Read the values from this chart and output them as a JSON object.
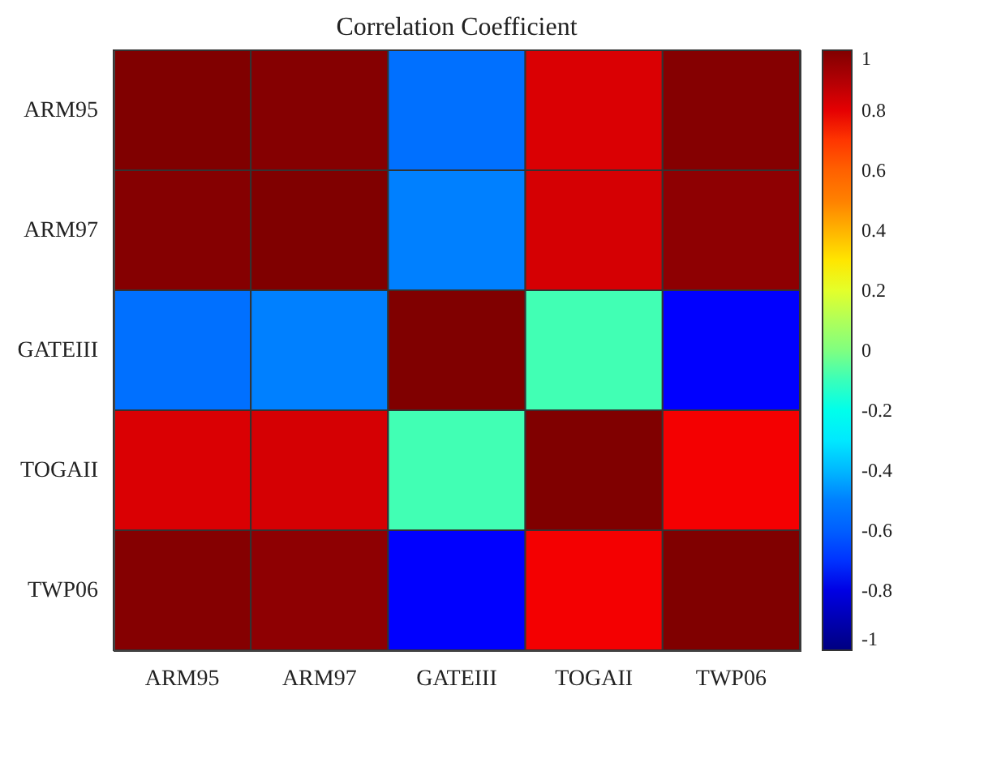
{
  "chart_data": {
    "type": "heatmap",
    "title": "Correlation Coefficient",
    "categories": [
      "ARM95",
      "ARM97",
      "GATEIII",
      "TOGAII",
      "TWP06"
    ],
    "y_categories": [
      "ARM95",
      "ARM97",
      "GATEIII",
      "TOGAII",
      "TWP06"
    ],
    "cells": [
      [
        1,
        0.99,
        -0.55,
        0.82,
        0.99
      ],
      [
        0.99,
        1,
        -0.5,
        0.83,
        0.97
      ],
      [
        -0.55,
        -0.5,
        1,
        -0.09,
        -0.75
      ],
      [
        0.82,
        0.83,
        -0.09,
        1,
        0.77
      ],
      [
        0.99,
        0.97,
        -0.75,
        0.77,
        1
      ]
    ],
    "clim": [
      -1,
      1
    ],
    "cticks": [
      -1,
      -0.8,
      -0.6,
      -0.4,
      -0.2,
      0,
      0.2,
      0.4,
      0.6,
      0.8,
      1
    ]
  }
}
